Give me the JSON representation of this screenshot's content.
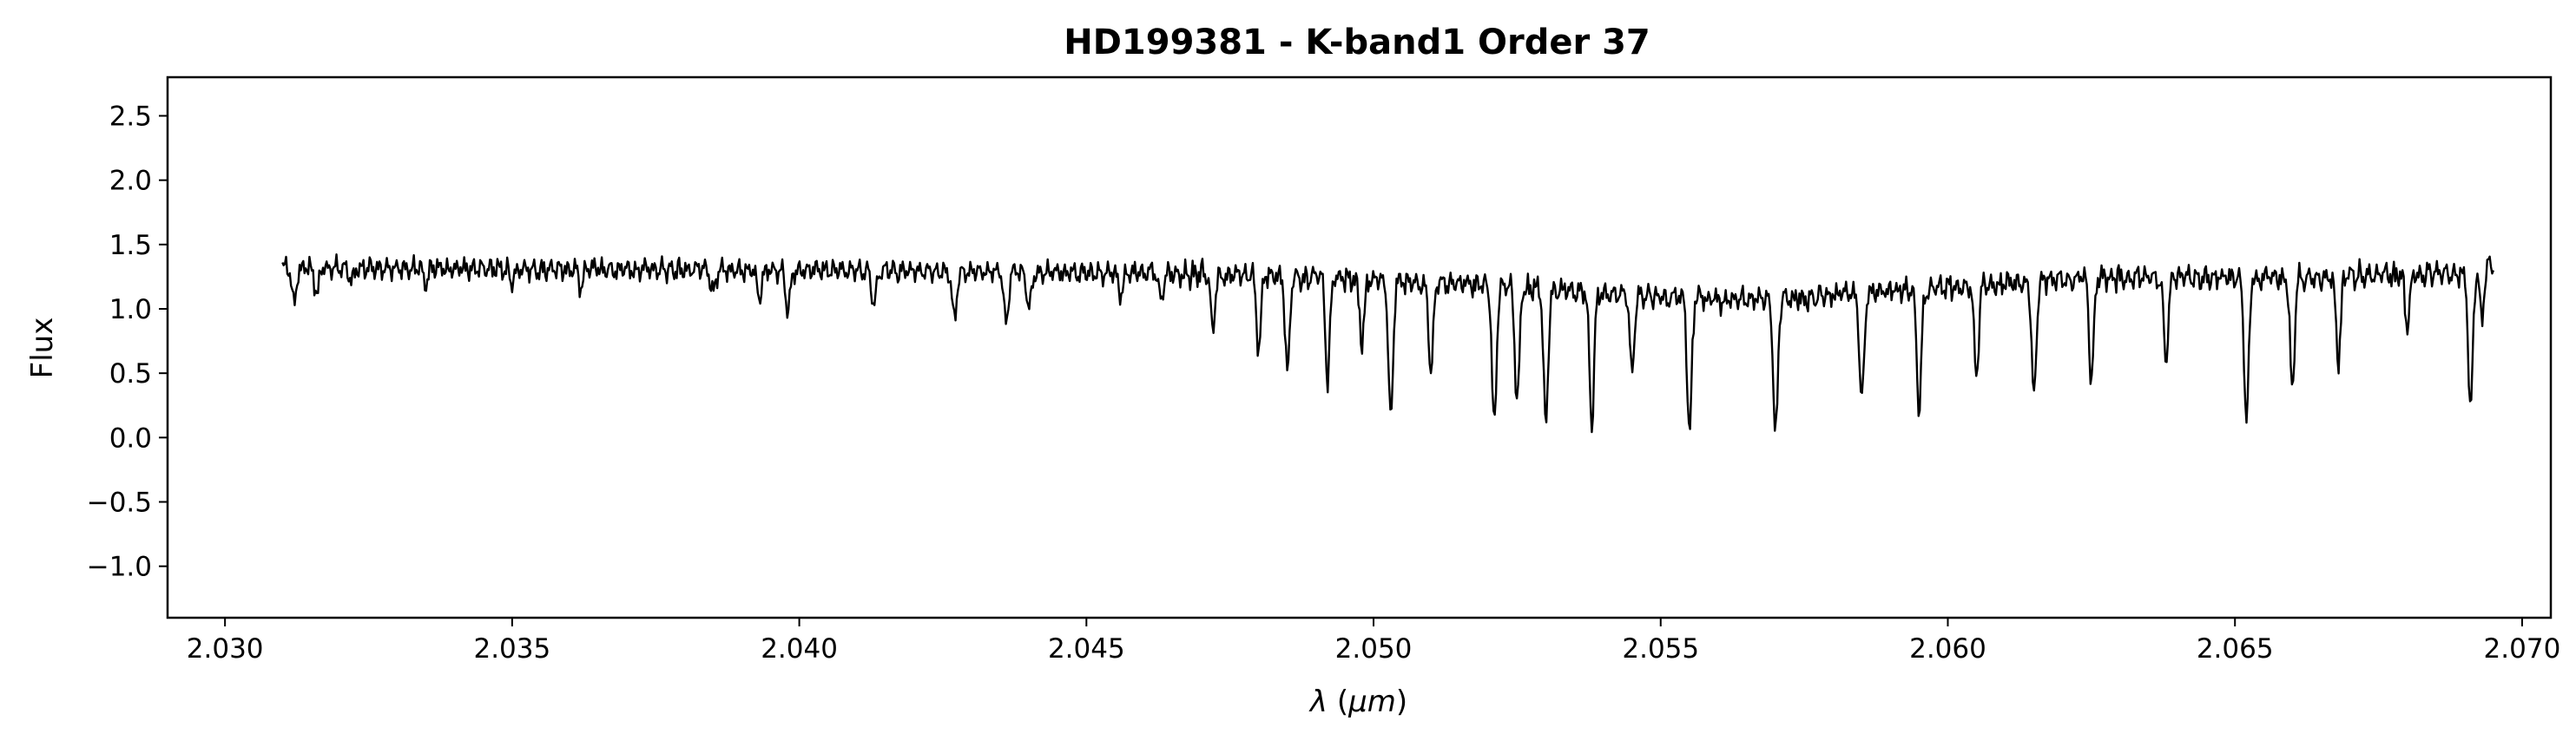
{
  "chart_data": {
    "type": "line",
    "title": "HD199381 - K-band1 Order 37",
    "xlabel": "λ (μm)",
    "xlabel_parts": {
      "symbol": "λ",
      "open": "(",
      "unit": "μm",
      "close": ")"
    },
    "ylabel": "Flux",
    "xlim": [
      2.029,
      2.0705
    ],
    "ylim": [
      -1.4,
      2.8
    ],
    "xticks": [
      2.03,
      2.035,
      2.04,
      2.045,
      2.05,
      2.055,
      2.06,
      2.065,
      2.07
    ],
    "xtick_labels": [
      "2.030",
      "2.035",
      "2.040",
      "2.045",
      "2.050",
      "2.055",
      "2.060",
      "2.065",
      "2.070"
    ],
    "yticks": [
      -1.0,
      -0.5,
      0.0,
      0.5,
      1.0,
      1.5,
      2.0,
      2.5
    ],
    "ytick_labels": [
      "−1.0",
      "−0.5",
      "0.0",
      "0.5",
      "1.0",
      "1.5",
      "2.0",
      "2.5"
    ],
    "grid": false,
    "line_color": "#000000",
    "series": [
      {
        "x_start": 2.031,
        "x_end": 2.0695,
        "continuum": [
          [
            2.031,
            1.32
          ],
          [
            2.04,
            1.3
          ],
          [
            2.046,
            1.28
          ],
          [
            2.049,
            1.25
          ],
          [
            2.052,
            1.18
          ],
          [
            2.055,
            1.09
          ],
          [
            2.057,
            1.07
          ],
          [
            2.06,
            1.17
          ],
          [
            2.063,
            1.25
          ],
          [
            2.066,
            1.24
          ],
          [
            2.069,
            1.28
          ],
          [
            2.0695,
            1.36
          ]
        ],
        "absorption_lines": [
          [
            2.0312,
            0.28
          ],
          [
            2.0316,
            0.2
          ],
          [
            2.0322,
            0.1
          ],
          [
            2.0335,
            0.12
          ],
          [
            2.035,
            0.1
          ],
          [
            2.0362,
            0.14
          ],
          [
            2.0385,
            0.2
          ],
          [
            2.0393,
            0.22
          ],
          [
            2.0398,
            0.3
          ],
          [
            2.0413,
            0.25
          ],
          [
            2.0427,
            0.37
          ],
          [
            2.0436,
            0.4
          ],
          [
            2.044,
            0.28
          ],
          [
            2.0456,
            0.18
          ],
          [
            2.0463,
            0.22
          ],
          [
            2.0472,
            0.42
          ],
          [
            2.048,
            0.58
          ],
          [
            2.0485,
            0.75
          ],
          [
            2.0492,
            0.8
          ],
          [
            2.0498,
            0.5
          ],
          [
            2.0503,
            1.08
          ],
          [
            2.051,
            0.7
          ],
          [
            2.0521,
            1.08
          ],
          [
            2.0525,
            0.9
          ],
          [
            2.053,
            1.1
          ],
          [
            2.0538,
            1.02
          ],
          [
            2.0545,
            0.6
          ],
          [
            2.0555,
            1.05
          ],
          [
            2.057,
            1.07
          ],
          [
            2.0585,
            0.85
          ],
          [
            2.0595,
            0.95
          ],
          [
            2.0605,
            0.7
          ],
          [
            2.0615,
            0.9
          ],
          [
            2.0625,
            0.8
          ],
          [
            2.0638,
            0.65
          ],
          [
            2.0652,
            1.15
          ],
          [
            2.066,
            0.9
          ],
          [
            2.0668,
            0.65
          ],
          [
            2.068,
            0.43
          ],
          [
            2.0691,
            1.1
          ],
          [
            2.0693,
            0.4
          ]
        ]
      }
    ]
  }
}
